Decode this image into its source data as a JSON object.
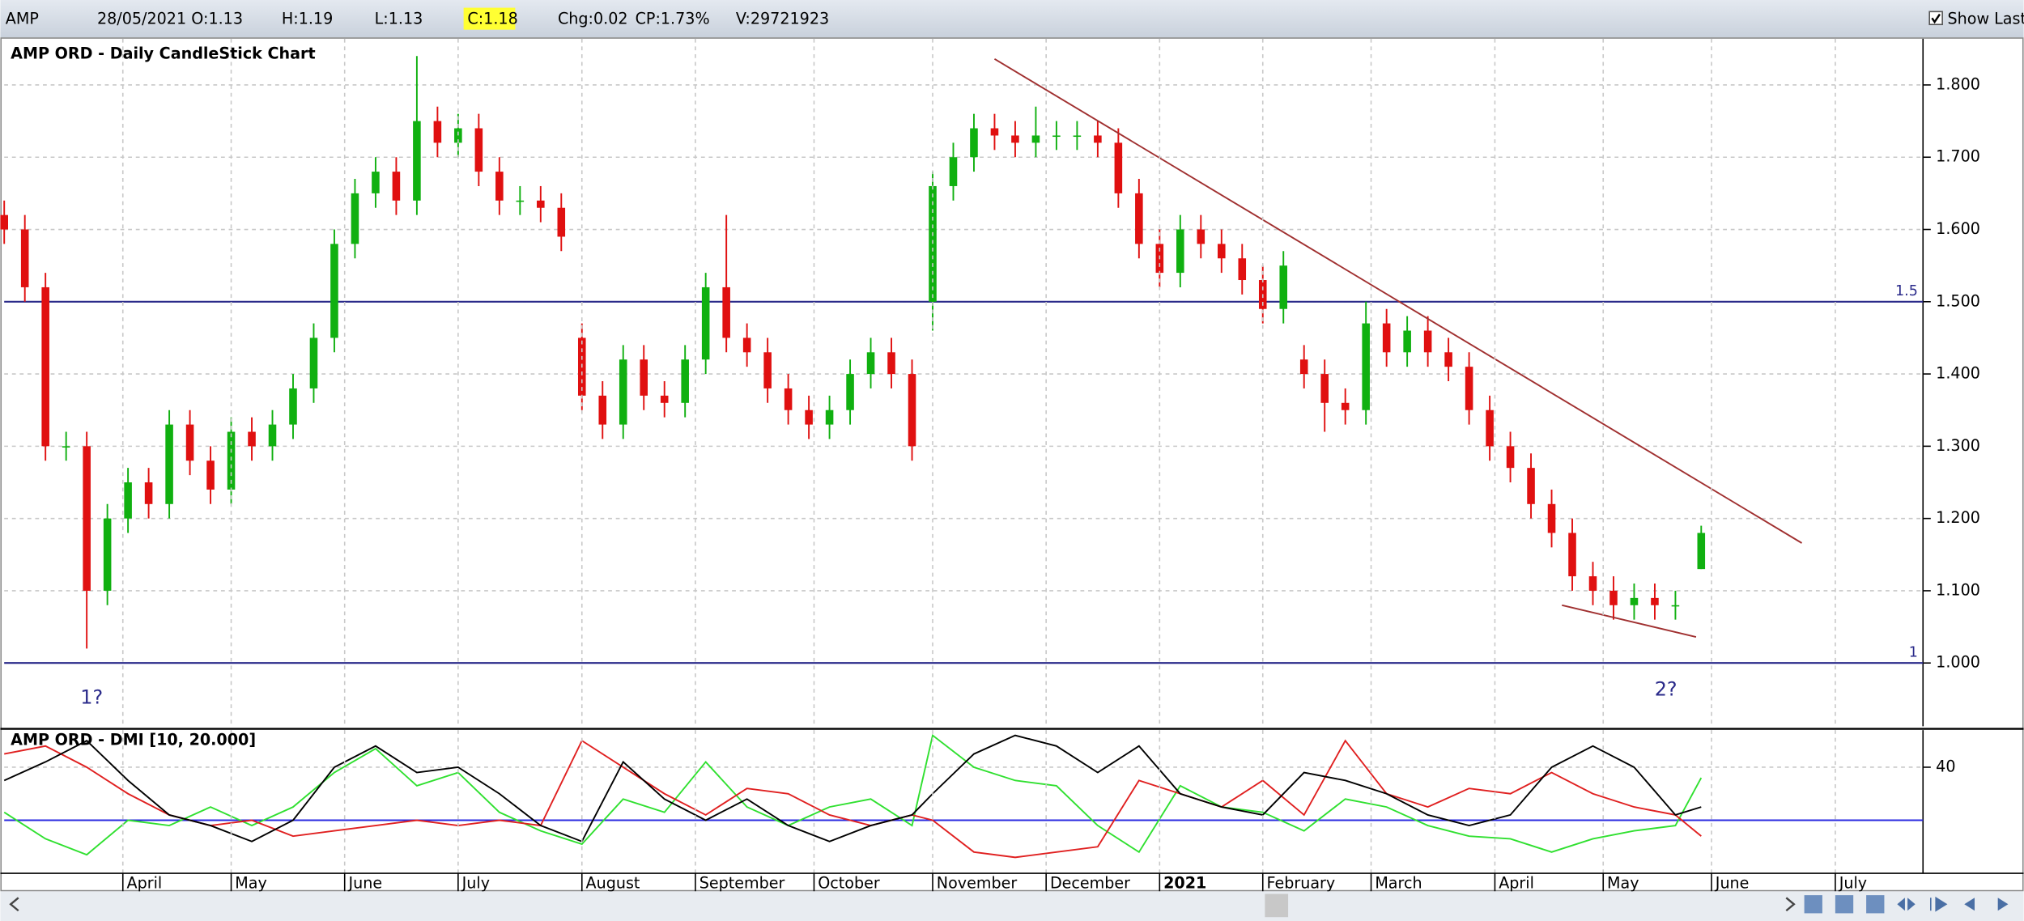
{
  "header": {
    "symbol": "AMP",
    "date": "28/05/2021",
    "open": "O:1.13",
    "high": "H:1.19",
    "low": "L:1.13",
    "close": "C:1.18",
    "change": "Chg:0.02",
    "change_pct": "CP:1.73%",
    "volume": "V:29721923",
    "show_last": "Show Last"
  },
  "chart_data": [
    {
      "type": "candlestick",
      "title": "AMP ORD - Daily CandleStick Chart",
      "up_color": "#10b010",
      "down_color": "#e01010",
      "xlim": [
        0,
        372
      ],
      "ylim": [
        0.9125,
        1.864
      ],
      "yticks": [
        {
          "value": 1.8,
          "label": "1.800"
        },
        {
          "value": 1.7,
          "label": "1.700"
        },
        {
          "value": 1.6,
          "label": "1.600"
        },
        {
          "value": 1.5,
          "label": "1.500"
        },
        {
          "value": 1.4,
          "label": "1.400"
        },
        {
          "value": 1.3,
          "label": "1.300"
        },
        {
          "value": 1.2,
          "label": "1.200"
        },
        {
          "value": 1.1,
          "label": "1.100"
        },
        {
          "value": 1.0,
          "label": "1.000"
        }
      ],
      "grid": true,
      "hlines": [
        1.5,
        1
      ],
      "hline_color": "#2a2a8a",
      "trendlines": [
        {
          "x": [
            192,
            348.5
          ],
          "y": [
            1.836,
            1.166
          ],
          "color": "#a03030"
        },
        {
          "x": [
            302,
            328
          ],
          "y": [
            1.08,
            1.036
          ],
          "color": "#a03030"
        }
      ],
      "annotations": [
        "1?",
        "2?"
      ],
      "x": [
        0,
        4,
        8,
        12,
        16,
        20,
        24,
        28,
        32,
        36,
        40,
        44,
        48,
        52,
        56,
        60,
        64,
        68,
        72,
        76,
        80,
        84,
        88,
        92,
        96,
        100,
        104,
        108,
        112,
        116,
        120,
        124,
        128,
        132,
        136,
        140,
        144,
        148,
        152,
        156,
        160,
        164,
        168,
        172,
        176,
        180,
        184,
        188,
        192,
        196,
        200,
        204,
        208,
        212,
        216,
        220,
        224,
        228,
        232,
        236,
        240,
        244,
        248,
        252,
        256,
        260,
        264,
        268,
        272,
        276,
        280,
        284,
        288,
        292,
        296,
        300,
        304,
        308,
        312,
        316,
        320,
        324,
        329
      ],
      "open": [
        1.62,
        1.6,
        1.52,
        1.3,
        1.3,
        1.1,
        1.2,
        1.25,
        1.22,
        1.33,
        1.28,
        1.24,
        1.32,
        1.3,
        1.33,
        1.38,
        1.45,
        1.58,
        1.65,
        1.68,
        1.64,
        1.75,
        1.72,
        1.74,
        1.68,
        1.64,
        1.64,
        1.63,
        1.45,
        1.37,
        1.33,
        1.42,
        1.37,
        1.36,
        1.42,
        1.52,
        1.45,
        1.43,
        1.38,
        1.35,
        1.33,
        1.35,
        1.4,
        1.43,
        1.4,
        1.5,
        1.66,
        1.7,
        1.74,
        1.73,
        1.72,
        1.73,
        1.73,
        1.73,
        1.72,
        1.65,
        1.58,
        1.54,
        1.6,
        1.58,
        1.56,
        1.53,
        1.49,
        1.42,
        1.4,
        1.36,
        1.35,
        1.47,
        1.43,
        1.46,
        1.43,
        1.41,
        1.35,
        1.3,
        1.27,
        1.22,
        1.18,
        1.12,
        1.1,
        1.08,
        1.09,
        1.08,
        1.13
      ],
      "high": [
        1.64,
        1.62,
        1.54,
        1.32,
        1.32,
        1.22,
        1.27,
        1.27,
        1.35,
        1.35,
        1.3,
        1.34,
        1.34,
        1.35,
        1.4,
        1.47,
        1.6,
        1.67,
        1.7,
        1.7,
        1.84,
        1.77,
        1.76,
        1.76,
        1.7,
        1.66,
        1.66,
        1.65,
        1.47,
        1.39,
        1.44,
        1.44,
        1.39,
        1.44,
        1.54,
        1.62,
        1.47,
        1.45,
        1.4,
        1.37,
        1.37,
        1.42,
        1.45,
        1.45,
        1.42,
        1.68,
        1.72,
        1.76,
        1.76,
        1.75,
        1.77,
        1.75,
        1.75,
        1.75,
        1.74,
        1.67,
        1.6,
        1.62,
        1.62,
        1.6,
        1.58,
        1.55,
        1.57,
        1.44,
        1.42,
        1.38,
        1.5,
        1.49,
        1.48,
        1.48,
        1.45,
        1.43,
        1.37,
        1.32,
        1.29,
        1.24,
        1.2,
        1.14,
        1.12,
        1.11,
        1.11,
        1.1,
        1.19
      ],
      "low": [
        1.58,
        1.5,
        1.28,
        1.28,
        1.02,
        1.08,
        1.18,
        1.2,
        1.2,
        1.26,
        1.22,
        1.22,
        1.28,
        1.28,
        1.31,
        1.36,
        1.43,
        1.56,
        1.63,
        1.62,
        1.62,
        1.7,
        1.7,
        1.66,
        1.62,
        1.62,
        1.61,
        1.57,
        1.35,
        1.31,
        1.31,
        1.35,
        1.34,
        1.34,
        1.4,
        1.43,
        1.41,
        1.36,
        1.33,
        1.31,
        1.31,
        1.33,
        1.38,
        1.38,
        1.28,
        1.46,
        1.64,
        1.68,
        1.71,
        1.7,
        1.7,
        1.71,
        1.71,
        1.7,
        1.63,
        1.56,
        1.52,
        1.52,
        1.56,
        1.54,
        1.51,
        1.47,
        1.47,
        1.38,
        1.32,
        1.33,
        1.33,
        1.41,
        1.41,
        1.41,
        1.39,
        1.33,
        1.28,
        1.25,
        1.2,
        1.16,
        1.1,
        1.08,
        1.06,
        1.06,
        1.06,
        1.06,
        1.13
      ],
      "close": [
        1.6,
        1.52,
        1.3,
        1.3,
        1.1,
        1.2,
        1.25,
        1.22,
        1.33,
        1.28,
        1.24,
        1.32,
        1.3,
        1.33,
        1.38,
        1.45,
        1.58,
        1.65,
        1.68,
        1.64,
        1.75,
        1.72,
        1.74,
        1.68,
        1.64,
        1.64,
        1.63,
        1.59,
        1.37,
        1.33,
        1.42,
        1.37,
        1.36,
        1.42,
        1.52,
        1.45,
        1.43,
        1.38,
        1.35,
        1.33,
        1.35,
        1.4,
        1.43,
        1.4,
        1.3,
        1.66,
        1.7,
        1.74,
        1.73,
        1.72,
        1.73,
        1.73,
        1.73,
        1.72,
        1.65,
        1.58,
        1.54,
        1.6,
        1.58,
        1.56,
        1.53,
        1.49,
        1.55,
        1.4,
        1.36,
        1.35,
        1.47,
        1.43,
        1.46,
        1.43,
        1.41,
        1.35,
        1.3,
        1.27,
        1.22,
        1.18,
        1.12,
        1.1,
        1.08,
        1.09,
        1.08,
        1.08,
        1.18
      ]
    },
    {
      "type": "line",
      "title": "AMP ORD - DMI [10, 20.000]",
      "xlim": [
        0,
        372
      ],
      "ylim": [
        0,
        54
      ],
      "yticks": [
        40
      ],
      "grid": true,
      "reference_line": 20,
      "reference_color": "#2a2ae0",
      "xticks": [
        {
          "value": 23,
          "label": "April"
        },
        {
          "value": 44,
          "label": "May"
        },
        {
          "value": 66,
          "label": "June"
        },
        {
          "value": 88,
          "label": "July"
        },
        {
          "value": 112,
          "label": "August"
        },
        {
          "value": 134,
          "label": "September"
        },
        {
          "value": 157,
          "label": "October"
        },
        {
          "value": 180,
          "label": "November"
        },
        {
          "value": 202,
          "label": "December"
        },
        {
          "value": 224,
          "label": "2021"
        },
        {
          "value": 244,
          "label": "February"
        },
        {
          "value": 265,
          "label": "March"
        },
        {
          "value": 289,
          "label": "April"
        },
        {
          "value": 310,
          "label": "May"
        },
        {
          "value": 331,
          "label": "June"
        },
        {
          "value": 355,
          "label": "July"
        }
      ],
      "x": [
        0,
        8,
        16,
        24,
        32,
        40,
        48,
        56,
        64,
        72,
        80,
        88,
        96,
        104,
        112,
        120,
        128,
        136,
        144,
        152,
        160,
        168,
        176,
        180,
        188,
        196,
        204,
        212,
        220,
        228,
        236,
        244,
        252,
        260,
        268,
        276,
        284,
        292,
        300,
        308,
        316,
        324,
        329
      ],
      "series": [
        {
          "color": "#30e030",
          "values": [
            23,
            13,
            7,
            20,
            18,
            25,
            18,
            25,
            38,
            47,
            33,
            38,
            23,
            16,
            11,
            28,
            23,
            42,
            25,
            18,
            25,
            28,
            18,
            52,
            40,
            35,
            33,
            18,
            8,
            33,
            25,
            23,
            16,
            28,
            25,
            18,
            14,
            13,
            8,
            13,
            16,
            18,
            36
          ]
        },
        {
          "color": "#e02020",
          "values": [
            45,
            48,
            40,
            30,
            22,
            18,
            20,
            14,
            16,
            18,
            20,
            18,
            20,
            18,
            50,
            40,
            30,
            22,
            32,
            30,
            22,
            18,
            22,
            20,
            8,
            6,
            8,
            10,
            35,
            30,
            25,
            35,
            22,
            50,
            30,
            25,
            32,
            30,
            38,
            30,
            25,
            22,
            14
          ]
        },
        {
          "color": "#000000",
          "values": [
            35,
            42,
            50,
            35,
            22,
            18,
            12,
            20,
            40,
            48,
            38,
            40,
            30,
            18,
            12,
            42,
            28,
            20,
            28,
            18,
            12,
            18,
            22,
            30,
            45,
            52,
            48,
            38,
            48,
            30,
            25,
            22,
            38,
            35,
            30,
            22,
            18,
            22,
            40,
            48,
            40,
            22,
            25
          ]
        }
      ]
    }
  ]
}
